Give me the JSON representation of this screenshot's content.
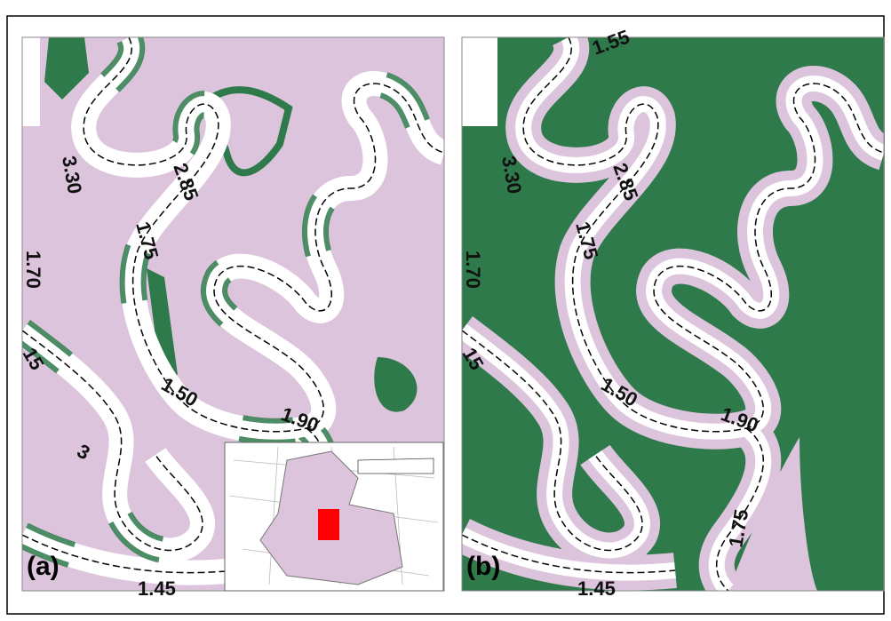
{
  "panels": [
    {
      "label": "(a)",
      "contour_labels": [
        "3.30",
        "2.85",
        "1.75",
        "1.70",
        "15",
        "1.50",
        "1.90",
        "3",
        "1.45"
      ]
    },
    {
      "label": "(b)",
      "contour_labels": [
        "3.30",
        "2.85",
        "1.75",
        "1.70",
        "15",
        "1.50",
        "1.90",
        "1.45",
        "1.75",
        "1.55"
      ]
    }
  ]
}
